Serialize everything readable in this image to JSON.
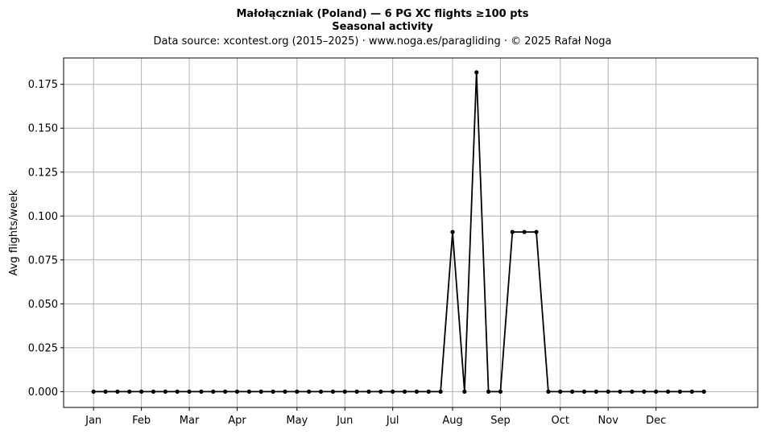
{
  "chart_data": {
    "type": "line",
    "title": "Małołączniak (Poland)  —  6 PG XC flights ≥100 pts",
    "subtitle": "Seasonal activity",
    "source_line": "Data source: xcontest.org (2015–2025)  ·  www.noga.es/paragliding  ·  © 2025 Rafał Noga",
    "xlabel": "",
    "ylabel": "Avg flights/week",
    "xlim": [
      -2.5,
      55.5
    ],
    "ylim": [
      -0.009,
      0.19
    ],
    "grid": true,
    "legend": "none",
    "month_ticks": [
      {
        "label": "Jan",
        "week": 0
      },
      {
        "label": "Feb",
        "week": 4
      },
      {
        "label": "Mar",
        "week": 8
      },
      {
        "label": "Apr",
        "week": 12
      },
      {
        "label": "May",
        "week": 17
      },
      {
        "label": "Jun",
        "week": 21
      },
      {
        "label": "Jul",
        "week": 25
      },
      {
        "label": "Aug",
        "week": 30
      },
      {
        "label": "Sep",
        "week": 34
      },
      {
        "label": "Oct",
        "week": 39
      },
      {
        "label": "Nov",
        "week": 43
      },
      {
        "label": "Dec",
        "week": 47
      }
    ],
    "y_ticks": [
      "0.000",
      "0.025",
      "0.050",
      "0.075",
      "0.100",
      "0.125",
      "0.150",
      "0.175"
    ],
    "series": [
      {
        "color": "#000000",
        "x": [
          0,
          1,
          2,
          3,
          4,
          5,
          6,
          7,
          8,
          9,
          10,
          11,
          12,
          13,
          14,
          15,
          16,
          17,
          18,
          19,
          20,
          21,
          22,
          23,
          24,
          25,
          26,
          27,
          28,
          29,
          30,
          31,
          32,
          33,
          34,
          35,
          36,
          37,
          38,
          39,
          40,
          41,
          42,
          43,
          44,
          45,
          46,
          47,
          48,
          49,
          50,
          51
        ],
        "values": [
          0,
          0,
          0,
          0,
          0,
          0,
          0,
          0,
          0,
          0,
          0,
          0,
          0,
          0,
          0,
          0,
          0,
          0,
          0,
          0,
          0,
          0,
          0,
          0,
          0,
          0,
          0,
          0,
          0,
          0,
          0.0909,
          0,
          0.1818,
          0,
          0,
          0.0909,
          0.0909,
          0.0909,
          0,
          0,
          0,
          0,
          0,
          0,
          0,
          0,
          0,
          0,
          0,
          0,
          0,
          0
        ]
      }
    ]
  }
}
